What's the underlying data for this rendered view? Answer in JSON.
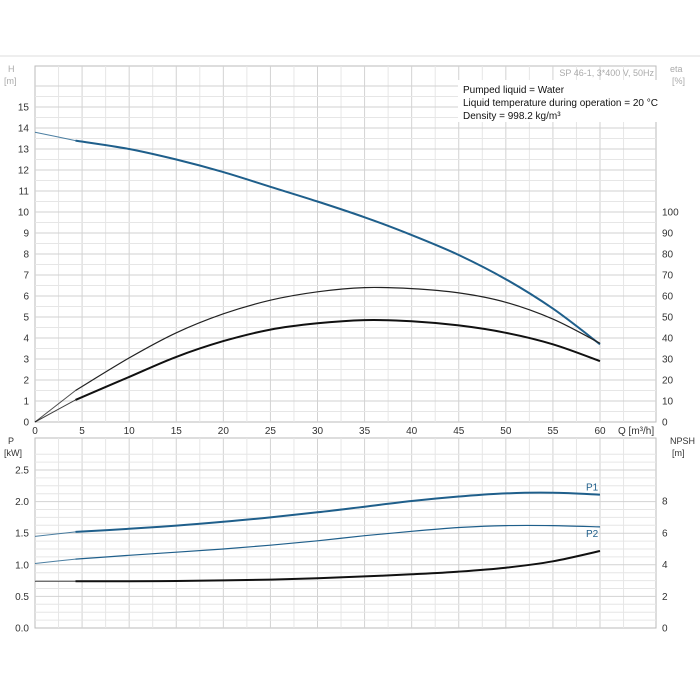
{
  "header": {
    "pump_label": "SP 46-1, 3*400 V, 50Hz",
    "info_lines": [
      "Pumped liquid = Water",
      "Liquid temperature during operation = 20 °C",
      "Density = 998.2 kg/m³"
    ]
  },
  "chart_data": [
    {
      "type": "line",
      "panel": "top",
      "xlabel": "Q [m³/h]",
      "ylabel": "H [m]",
      "y2label": "eta [%]",
      "xlim": [
        0,
        60
      ],
      "ylim": [
        0,
        16
      ],
      "y2lim": [
        0,
        100
      ],
      "xticks": [
        0,
        5,
        10,
        15,
        20,
        25,
        30,
        35,
        40,
        45,
        50,
        55,
        60
      ],
      "yticks": [
        0,
        1,
        2,
        3,
        4,
        5,
        6,
        7,
        8,
        9,
        10,
        11,
        12,
        13,
        14,
        15
      ],
      "y2ticks": [
        0,
        10,
        20,
        30,
        40,
        50,
        60,
        70,
        80,
        90,
        100
      ],
      "grid": true,
      "series": [
        {
          "color": "#1f5f8b",
          "axis": "left",
          "points": [
            [
              0,
              13.8
            ],
            [
              4.3,
              13.4
            ],
            [
              10,
              13.0
            ],
            [
              15,
              12.5
            ],
            [
              20,
              11.9
            ],
            [
              25,
              11.2
            ],
            [
              30,
              10.5
            ],
            [
              35,
              9.75
            ],
            [
              40,
              8.9
            ],
            [
              45,
              7.95
            ],
            [
              50,
              6.8
            ],
            [
              55,
              5.4
            ],
            [
              60,
              3.7
            ]
          ],
          "dashed_segment": [
            0,
            4.3
          ]
        },
        {
          "color": "#222222",
          "axis": "left",
          "points": [
            [
              0,
              0
            ],
            [
              4.3,
              1.5
            ],
            [
              10,
              3.05
            ],
            [
              15,
              4.25
            ],
            [
              20,
              5.15
            ],
            [
              25,
              5.8
            ],
            [
              30,
              6.2
            ],
            [
              35,
              6.4
            ],
            [
              40,
              6.35
            ],
            [
              45,
              6.15
            ],
            [
              50,
              5.7
            ],
            [
              55,
              4.9
            ],
            [
              60,
              3.75
            ]
          ],
          "dashed_segment": [
            0,
            4.3
          ]
        },
        {
          "color": "#111111",
          "axis": "left",
          "points": [
            [
              0,
              0
            ],
            [
              4.3,
              1.05
            ],
            [
              10,
              2.15
            ],
            [
              15,
              3.1
            ],
            [
              20,
              3.85
            ],
            [
              25,
              4.4
            ],
            [
              30,
              4.7
            ],
            [
              35,
              4.85
            ],
            [
              40,
              4.8
            ],
            [
              45,
              4.6
            ],
            [
              50,
              4.25
            ],
            [
              55,
              3.7
            ],
            [
              60,
              2.9
            ]
          ],
          "dashed_segment": [
            0,
            4.3
          ]
        }
      ]
    },
    {
      "type": "line",
      "panel": "bottom",
      "xlabel": "",
      "ylabel": "P [kW]",
      "y2label": "NPSH [m]",
      "xlim": [
        0,
        60
      ],
      "ylim": [
        0,
        2.5
      ],
      "y2lim": [
        0,
        10
      ],
      "xticks": [
        0,
        5,
        10,
        15,
        20,
        25,
        30,
        35,
        40,
        45,
        50,
        55,
        60
      ],
      "yticks": [
        0,
        0.5,
        1.0,
        1.5,
        2.0,
        2.5
      ],
      "ytick_labels": [
        "0.0",
        "0.5",
        "1.0",
        "1.5",
        "2.0",
        "2.5"
      ],
      "y2ticks": [
        0,
        2,
        4,
        6,
        8
      ],
      "grid": true,
      "series": [
        {
          "name": "P1",
          "color": "#1f5f8b",
          "axis": "left",
          "points": [
            [
              0,
              1.45
            ],
            [
              4.3,
              1.52
            ],
            [
              10,
              1.57
            ],
            [
              15,
              1.62
            ],
            [
              20,
              1.68
            ],
            [
              25,
              1.75
            ],
            [
              30,
              1.83
            ],
            [
              35,
              1.92
            ],
            [
              40,
              2.01
            ],
            [
              45,
              2.08
            ],
            [
              50,
              2.13
            ],
            [
              55,
              2.14
            ],
            [
              60,
              2.11
            ]
          ],
          "dashed_segment": [
            0,
            4.3
          ]
        },
        {
          "name": "P2",
          "color": "#1f5f8b",
          "axis": "left",
          "points": [
            [
              0,
              1.02
            ],
            [
              4.3,
              1.09
            ],
            [
              10,
              1.15
            ],
            [
              15,
              1.2
            ],
            [
              20,
              1.25
            ],
            [
              25,
              1.31
            ],
            [
              30,
              1.38
            ],
            [
              35,
              1.46
            ],
            [
              40,
              1.53
            ],
            [
              45,
              1.59
            ],
            [
              50,
              1.62
            ],
            [
              55,
              1.62
            ],
            [
              60,
              1.6
            ]
          ],
          "dashed_segment": [
            0,
            4.3
          ]
        },
        {
          "color": "#111111",
          "axis": "right",
          "points": [
            [
              0,
              2.95
            ],
            [
              4.3,
              2.95
            ],
            [
              10,
              2.95
            ],
            [
              15,
              2.96
            ],
            [
              20,
              3.0
            ],
            [
              25,
              3.05
            ],
            [
              30,
              3.13
            ],
            [
              35,
              3.25
            ],
            [
              40,
              3.38
            ],
            [
              45,
              3.55
            ],
            [
              50,
              3.8
            ],
            [
              55,
              4.2
            ],
            [
              60,
              4.85
            ]
          ],
          "dashed_segment": [
            0,
            4.3
          ]
        }
      ]
    }
  ]
}
